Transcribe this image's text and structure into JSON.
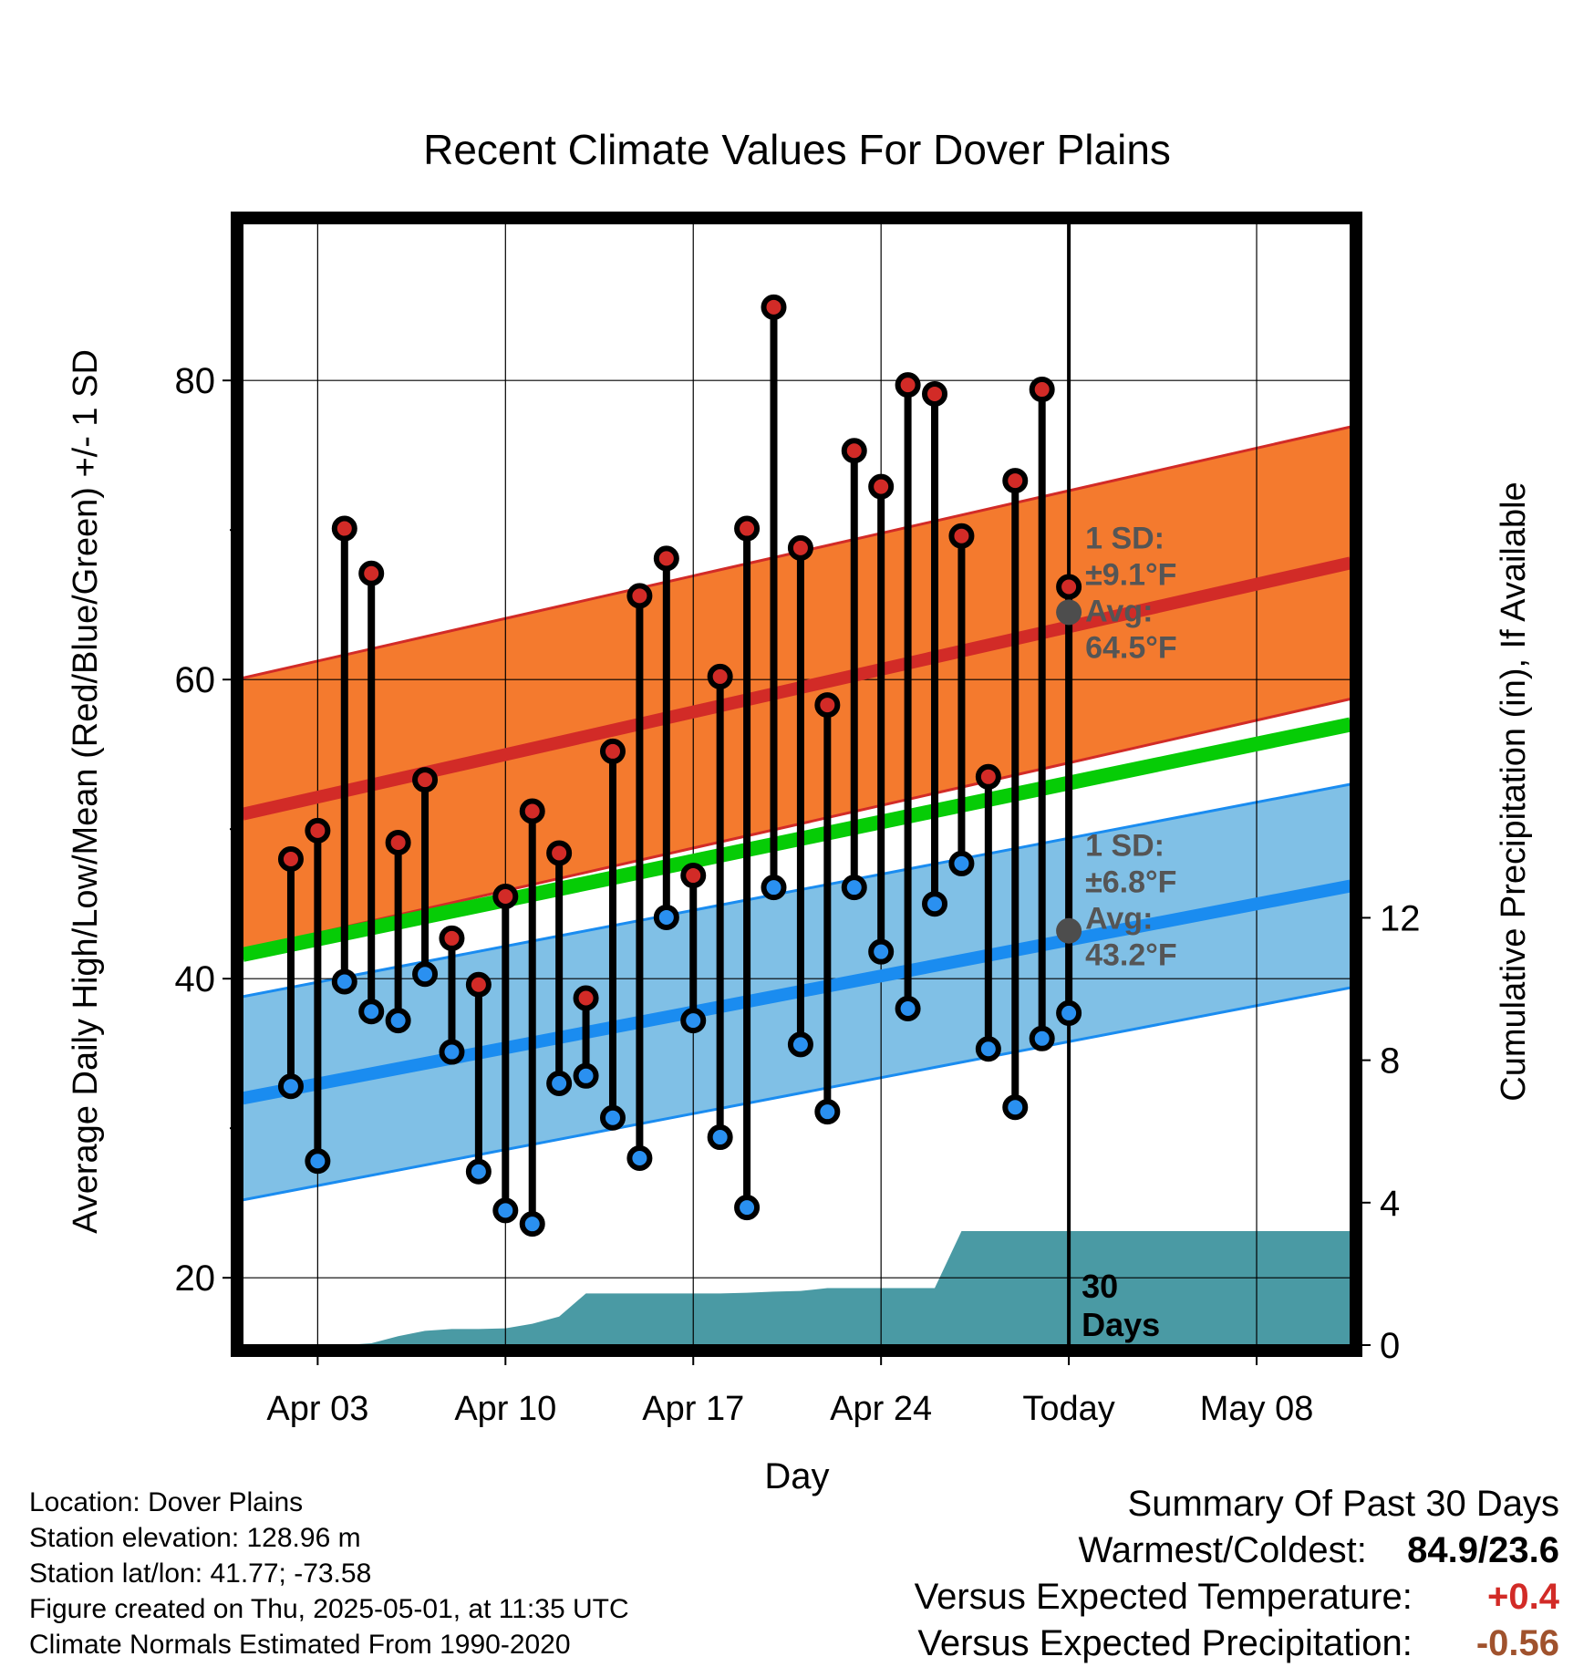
{
  "chart_data": {
    "type": "line",
    "title": "Recent Climate Values For Dover Plains",
    "xlabel": "Day",
    "ylabel": "Average Daily High/Low/Mean (Red/Blue/Green) +/- 1 SD",
    "y2label": "Cumulative Precipitation (in), If Available",
    "x_tick_labels": [
      "Apr 03",
      "Apr 10",
      "Apr 17",
      "Apr 24",
      "Today",
      "May 08"
    ],
    "x_tick_days": [
      3,
      10,
      17,
      24,
      31,
      38
    ],
    "xlim": [
      0.2,
      41.5
    ],
    "ylim": [
      15.5,
      90.5
    ],
    "y_ticks": [
      20,
      40,
      60,
      80
    ],
    "y_minor_ticks": [
      30,
      50,
      70
    ],
    "y2lim": [
      0,
      31.5
    ],
    "y2_ticks": [
      0,
      4,
      8,
      12
    ],
    "today_day": 31,
    "today_annotation": [
      "30",
      "Days"
    ],
    "normal_high": {
      "start": 51.0,
      "end": 67.8,
      "sd": 9.1
    },
    "normal_low": {
      "start": 32.0,
      "end": 46.2,
      "sd": 6.8
    },
    "normal_mean": {
      "start": 41.6,
      "end": 57.0
    },
    "high_annotation": [
      "1 SD:",
      "±9.1°F",
      "Avg:",
      "64.5°F"
    ],
    "high_avg_today": 64.5,
    "low_annotation": [
      "1 SD:",
      "±6.8°F",
      "Avg:",
      "43.2°F"
    ],
    "low_avg_today": 43.2,
    "daily": [
      {
        "day": 2,
        "high": 48.0,
        "low": 32.8
      },
      {
        "day": 3,
        "high": 49.9,
        "low": 27.8
      },
      {
        "day": 4,
        "high": 70.1,
        "low": 39.8
      },
      {
        "day": 5,
        "high": 67.1,
        "low": 37.8
      },
      {
        "day": 6,
        "high": 49.1,
        "low": 37.2
      },
      {
        "day": 7,
        "high": 53.3,
        "low": 40.3
      },
      {
        "day": 8,
        "high": 42.7,
        "low": 35.1
      },
      {
        "day": 9,
        "high": 39.6,
        "low": 27.1
      },
      {
        "day": 10,
        "high": 45.5,
        "low": 24.5
      },
      {
        "day": 11,
        "high": 51.2,
        "low": 23.6
      },
      {
        "day": 12,
        "high": 48.4,
        "low": 33.0
      },
      {
        "day": 13,
        "high": 38.7,
        "low": 33.5
      },
      {
        "day": 14,
        "high": 55.2,
        "low": 30.7
      },
      {
        "day": 15,
        "high": 65.6,
        "low": 28.0
      },
      {
        "day": 16,
        "high": 68.1,
        "low": 44.1
      },
      {
        "day": 17,
        "high": 46.9,
        "low": 37.2
      },
      {
        "day": 18,
        "high": 60.2,
        "low": 29.4
      },
      {
        "day": 19,
        "high": 70.1,
        "low": 24.7
      },
      {
        "day": 20,
        "high": 84.9,
        "low": 46.1
      },
      {
        "day": 21,
        "high": 68.8,
        "low": 35.6
      },
      {
        "day": 22,
        "high": 58.3,
        "low": 31.1
      },
      {
        "day": 23,
        "high": 75.3,
        "low": 46.1
      },
      {
        "day": 24,
        "high": 72.9,
        "low": 41.8
      },
      {
        "day": 25,
        "high": 79.7,
        "low": 38.0
      },
      {
        "day": 26,
        "high": 79.1,
        "low": 45.0
      },
      {
        "day": 27,
        "high": 69.6,
        "low": 47.7
      },
      {
        "day": 28,
        "high": 53.5,
        "low": 35.3
      },
      {
        "day": 29,
        "high": 73.3,
        "low": 31.4
      },
      {
        "day": 30,
        "high": 79.4,
        "low": 36.0
      },
      {
        "day": 31,
        "high": 66.2,
        "low": 37.7
      }
    ],
    "precip_cumulative": [
      {
        "day": 2,
        "value": 0.0
      },
      {
        "day": 3,
        "value": 0.0
      },
      {
        "day": 4,
        "value": 0.0
      },
      {
        "day": 5,
        "value": 0.05
      },
      {
        "day": 6,
        "value": 0.25
      },
      {
        "day": 7,
        "value": 0.4
      },
      {
        "day": 8,
        "value": 0.45
      },
      {
        "day": 9,
        "value": 0.45
      },
      {
        "day": 10,
        "value": 0.47
      },
      {
        "day": 11,
        "value": 0.6
      },
      {
        "day": 12,
        "value": 0.8
      },
      {
        "day": 13,
        "value": 1.45
      },
      {
        "day": 14,
        "value": 1.45
      },
      {
        "day": 15,
        "value": 1.45
      },
      {
        "day": 16,
        "value": 1.45
      },
      {
        "day": 17,
        "value": 1.45
      },
      {
        "day": 18,
        "value": 1.45
      },
      {
        "day": 19,
        "value": 1.47
      },
      {
        "day": 20,
        "value": 1.5
      },
      {
        "day": 21,
        "value": 1.52
      },
      {
        "day": 22,
        "value": 1.6
      },
      {
        "day": 23,
        "value": 1.6
      },
      {
        "day": 24,
        "value": 1.6
      },
      {
        "day": 25,
        "value": 1.6
      },
      {
        "day": 26,
        "value": 1.6
      },
      {
        "day": 27,
        "value": 3.2
      },
      {
        "day": 28,
        "value": 3.2
      },
      {
        "day": 29,
        "value": 3.2
      },
      {
        "day": 30,
        "value": 3.2
      },
      {
        "day": 31,
        "value": 3.2
      }
    ],
    "colors": {
      "high_band": "#f47a2e",
      "high_line": "#d22b27",
      "low_band": "#80c0e6",
      "low_line": "#1a8cf0",
      "mean_line": "#06cc06",
      "precip": "#4a9aa4",
      "high_dot": "#d22b27",
      "low_dot": "#2a90f0",
      "annotation": "#555555",
      "avg_dot": "#4d4d4d"
    }
  },
  "footer": {
    "location": "Location: Dover Plains",
    "elevation": "Station elevation: 128.96 m",
    "latlon": "Station lat/lon: 41.77; -73.58",
    "created": "Figure created on Thu, 2025-05-01, at 11:35 UTC",
    "normals": "Climate Normals Estimated From 1990-2020"
  },
  "summary": {
    "title": "Summary Of Past 30 Days",
    "warm_cold_label": "Warmest/Coldest:",
    "warm_cold_value": "84.9/23.6",
    "temp_label": "Versus Expected Temperature:",
    "temp_value": "+0.4",
    "temp_color": "#d22b27",
    "precip_label": "Versus Expected Precipitation:",
    "precip_value": "-0.56",
    "precip_color": "#a0522d"
  }
}
